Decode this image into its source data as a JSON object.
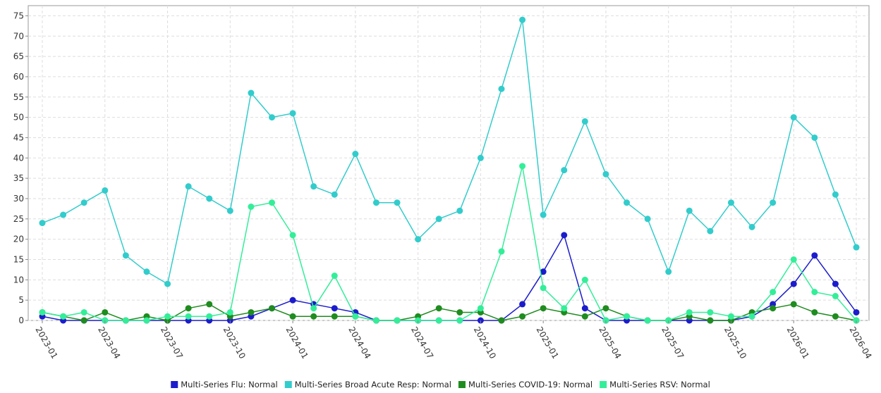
{
  "chart_data": {
    "type": "line",
    "categories": [
      "2023-01",
      null,
      null,
      "2023-04",
      null,
      null,
      "2023-07",
      null,
      null,
      "2023-10",
      null,
      null,
      "2024-01",
      null,
      null,
      "2024-04",
      null,
      null,
      "2024-07",
      null,
      null,
      "2024-10",
      null,
      null,
      "2025-01",
      null,
      null,
      "2025-04",
      null,
      null,
      "2025-07",
      null,
      null,
      "2025-10",
      null,
      null,
      "2026-01",
      null,
      null,
      "2026-04"
    ],
    "series": [
      {
        "name": "Multi-Series Flu: Normal",
        "color": "#1c1ccc",
        "values": [
          1,
          0,
          0,
          0,
          0,
          0,
          0,
          0,
          0,
          0,
          1,
          3,
          5,
          4,
          3,
          2,
          0,
          0,
          0,
          0,
          0,
          0,
          0,
          4,
          12,
          21,
          3,
          0,
          0,
          0,
          0,
          0,
          0,
          0,
          1,
          4,
          9,
          16,
          9,
          2
        ]
      },
      {
        "name": "Multi-Series Broad Acute Resp: Normal",
        "color": "#33cccc",
        "values": [
          24,
          26,
          29,
          32,
          16,
          12,
          9,
          33,
          30,
          27,
          56,
          50,
          51,
          33,
          31,
          41,
          29,
          29,
          20,
          25,
          27,
          40,
          57,
          74,
          26,
          37,
          49,
          36,
          29,
          25,
          12,
          27,
          22,
          29,
          23,
          29,
          50,
          45,
          31,
          18
        ]
      },
      {
        "name": "Multi-Series COVID-19: Normal",
        "color": "#1f8c1f",
        "values": [
          2,
          1,
          0,
          2,
          0,
          1,
          0,
          3,
          4,
          1,
          2,
          3,
          1,
          1,
          1,
          1,
          0,
          0,
          1,
          3,
          2,
          2,
          0,
          1,
          3,
          2,
          1,
          3,
          1,
          0,
          0,
          1,
          0,
          0,
          2,
          3,
          4,
          2,
          1,
          0
        ]
      },
      {
        "name": "Multi-Series RSV: Normal",
        "color": "#33ee99",
        "values": [
          2,
          1,
          2,
          0,
          0,
          0,
          1,
          1,
          1,
          2,
          28,
          29,
          21,
          3,
          11,
          1,
          0,
          0,
          0,
          0,
          0,
          3,
          17,
          38,
          8,
          3,
          10,
          0,
          1,
          0,
          0,
          2,
          2,
          1,
          1,
          7,
          15,
          7,
          6,
          0
        ]
      }
    ],
    "ylim": [
      0,
      77.5
    ],
    "yticks": [
      0,
      5,
      10,
      15,
      20,
      25,
      30,
      35,
      40,
      45,
      50,
      55,
      60,
      65,
      70,
      75
    ],
    "grid": true
  }
}
